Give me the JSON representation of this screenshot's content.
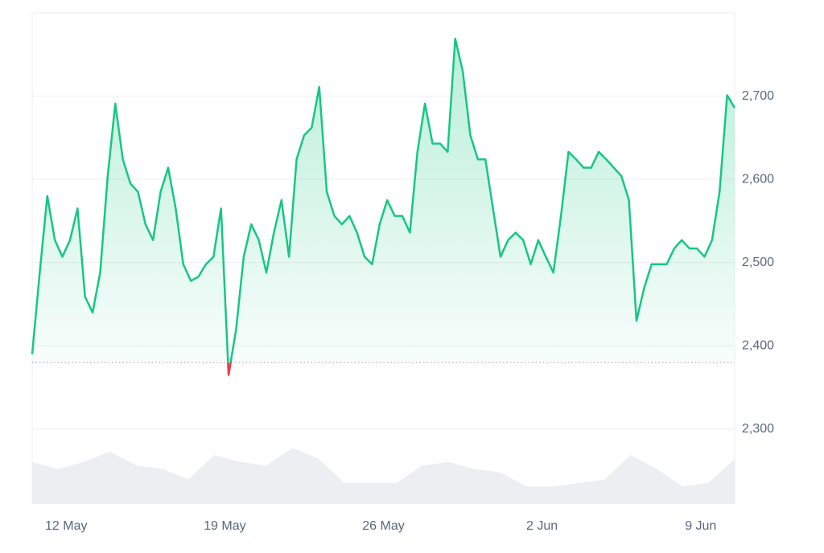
{
  "chart_data": {
    "type": "line",
    "values": [
      2390,
      2488,
      2580,
      2527,
      2507,
      2527,
      2565,
      2459,
      2440,
      2488,
      2604,
      2691,
      2624,
      2595,
      2585,
      2546,
      2527,
      2585,
      2614,
      2565,
      2498,
      2478,
      2483,
      2498,
      2507,
      2565,
      2365,
      2420,
      2507,
      2546,
      2527,
      2488,
      2536,
      2575,
      2507,
      2624,
      2653,
      2662,
      2711,
      2585,
      2556,
      2546,
      2556,
      2536,
      2507,
      2498,
      2546,
      2575,
      2556,
      2556,
      2536,
      2633,
      2691,
      2643,
      2643,
      2633,
      2769,
      2730,
      2653,
      2624,
      2624,
      2565,
      2507,
      2527,
      2536,
      2527,
      2498,
      2527,
      2507,
      2488,
      2556,
      2633,
      2624,
      2614,
      2614,
      2633,
      2624,
      2614,
      2604,
      2575,
      2430,
      2469,
      2498,
      2498,
      2498,
      2517,
      2527,
      2517,
      2517,
      2507,
      2527,
      2585,
      2701,
      2686
    ],
    "baseline": 2380,
    "color": "#16c784",
    "below_color": "#ea3943",
    "xlim": [
      0,
      93
    ],
    "xticks": [
      {
        "value": 4.5,
        "label": "12 May"
      },
      {
        "value": 25.5,
        "label": "19 May"
      },
      {
        "value": 46.5,
        "label": "26 May"
      },
      {
        "value": 67.5,
        "label": "2 Jun"
      },
      {
        "value": 88.5,
        "label": "9 Jun"
      }
    ],
    "ylim": [
      2210,
      2800
    ],
    "yticks": [
      {
        "value": 2300,
        "label": "2,300"
      },
      {
        "value": 2400,
        "label": "2,400"
      },
      {
        "value": 2500,
        "label": "2,500"
      },
      {
        "value": 2600,
        "label": "2,600"
      },
      {
        "value": 2700,
        "label": "2,700"
      }
    ],
    "grid": true,
    "volume": {
      "values": [
        60,
        50,
        60,
        75,
        55,
        50,
        35,
        70,
        60,
        55,
        80,
        65,
        30,
        30,
        30,
        55,
        60,
        50,
        45,
        25,
        25,
        30,
        35,
        70,
        50,
        25,
        30,
        65
      ],
      "ylim": [
        0,
        100
      ],
      "color": "#eceef2"
    }
  }
}
